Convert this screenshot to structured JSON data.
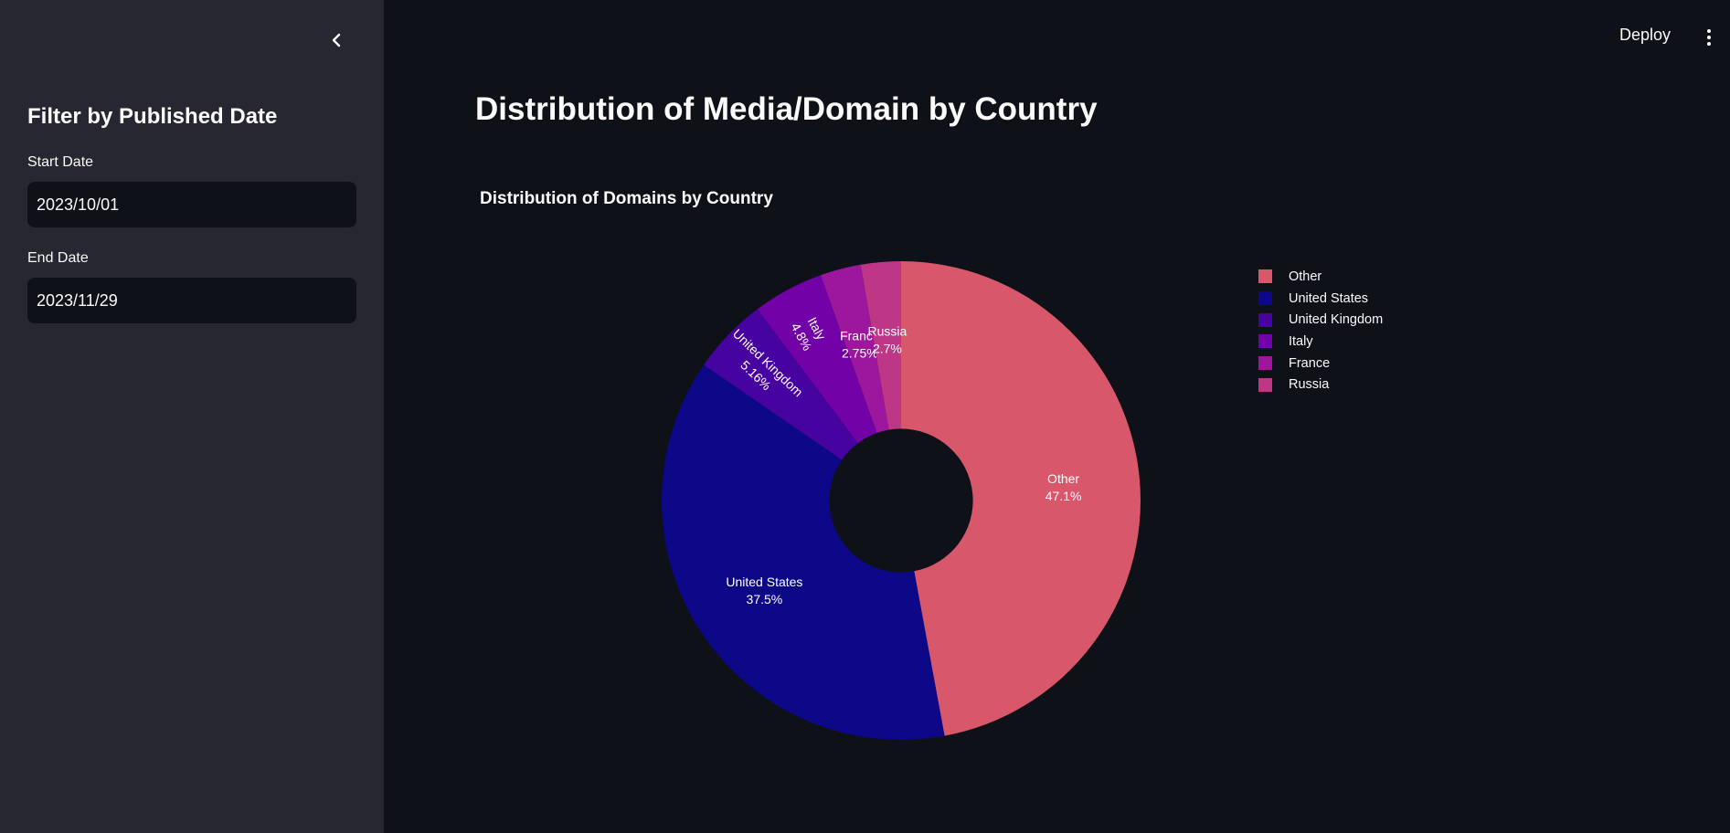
{
  "sidebar": {
    "title": "Filter by Published Date",
    "start_label": "Start Date",
    "start_value": "2023/10/01",
    "end_label": "End Date",
    "end_value": "2023/11/29"
  },
  "header": {
    "deploy_label": "Deploy"
  },
  "main": {
    "title": "Distribution of Media/Domain by Country"
  },
  "chart_data": {
    "type": "pie",
    "hole": 0.3,
    "title": "Distribution of Domains by Country",
    "legend_position": "right",
    "categories": [
      "Other",
      "United States",
      "United Kingdom",
      "Italy",
      "France",
      "Russia"
    ],
    "values": [
      47.1,
      37.5,
      5.16,
      4.8,
      2.75,
      2.7
    ],
    "labels_text": [
      "47.1%",
      "37.5%",
      "5.16%",
      "4.8%",
      "2.75%",
      "2.7%"
    ],
    "colors": [
      "#d8576b",
      "#0d0887",
      "#46039f",
      "#7201a8",
      "#9c179e",
      "#bd3786"
    ]
  }
}
